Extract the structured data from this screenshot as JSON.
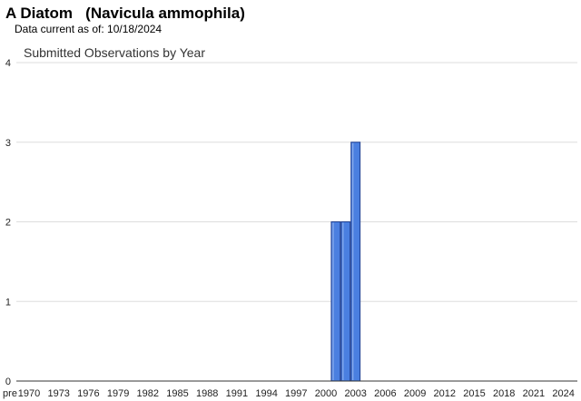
{
  "header": {
    "title": "A Diatom   (Navicula ammophila)",
    "data_current_label": "Data current as of: 10/18/2024"
  },
  "chart_data": {
    "type": "bar",
    "title": "Submitted Observations by Year",
    "xlabel": "",
    "ylabel": "",
    "ylim": [
      0,
      4
    ],
    "yticks": [
      0,
      1,
      2,
      3,
      4
    ],
    "grid": true,
    "legend": "none",
    "bar_color": "#4a7fe0",
    "bar_border_color": "#1f3f8f",
    "x_tick_labels": [
      "pre",
      "1970",
      "1973",
      "1976",
      "1979",
      "1982",
      "1985",
      "1988",
      "1991",
      "1994",
      "1997",
      "2000",
      "2003",
      "2006",
      "2009",
      "2012",
      "2015",
      "2018",
      "2021",
      "2024"
    ],
    "categories": [
      "2001",
      "2002",
      "2003"
    ],
    "values": [
      2,
      2,
      3
    ]
  }
}
